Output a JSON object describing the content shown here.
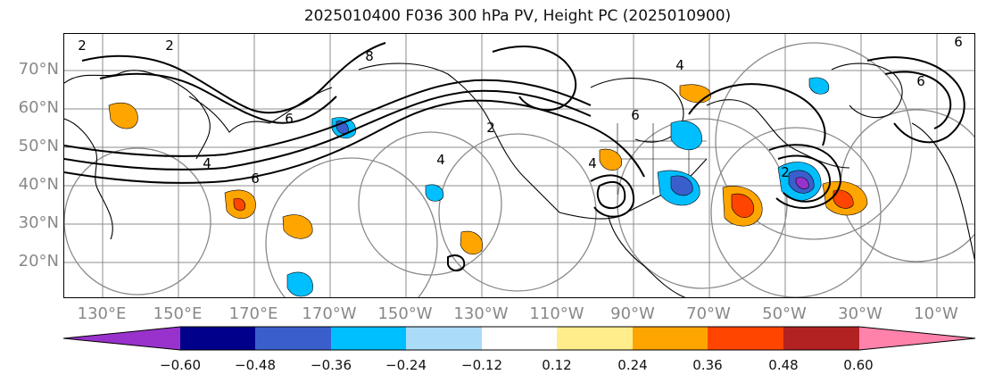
{
  "title": "2025010400 F036 300 hPa PV, Height PC (2025010900)",
  "lat_labels": [
    "70°N",
    "60°N",
    "50°N",
    "40°N",
    "30°N",
    "20°N"
  ],
  "lon_labels": [
    "130°E",
    "150°E",
    "170°E",
    "170°W",
    "150°W",
    "130°W",
    "110°W",
    "90°W",
    "70°W",
    "50°W",
    "30°W",
    "10°W"
  ],
  "contour_labels": [
    "2",
    "2",
    "4",
    "6",
    "8",
    "6",
    "4",
    "2",
    "4",
    "6",
    "2",
    "6",
    "6",
    "4"
  ],
  "colorbar": {
    "colors": [
      "#9932cc",
      "#00008b",
      "#3a5fcd",
      "#00bfff",
      "#aadcf8",
      "#ffffff",
      "#ffec8b",
      "#ffa500",
      "#ff4500",
      "#b22222",
      "#ff82ab"
    ],
    "tick_labels": [
      "−0.60",
      "−0.48",
      "−0.36",
      "−0.24",
      "−0.12",
      "0.12",
      "0.24",
      "0.36",
      "0.48",
      "0.60"
    ]
  }
}
